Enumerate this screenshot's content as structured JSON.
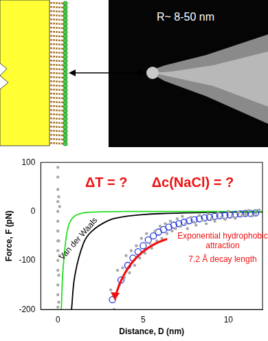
{
  "image_label": "R~ 8-50 nm",
  "chart_data": {
    "type": "scatter",
    "x_label": "Distance, D (nm)",
    "y_label": "Force, F (pN)",
    "xlim": [
      -1,
      12
    ],
    "xticks": [
      0,
      5,
      10
    ],
    "ylim": [
      -200,
      100
    ],
    "yticks": [
      -200,
      -100,
      0,
      100
    ],
    "grid": false,
    "annotations": [
      {
        "text": "ΔT = ?",
        "color": "#ee1111"
      },
      {
        "text": "Δc(NaCl) = ?",
        "color": "#ee1111"
      },
      {
        "text": "Exponential hydrophobic attraction",
        "color": "#ee1111"
      },
      {
        "text": "7.2 Å decay length",
        "color": "#ee1111"
      }
    ],
    "series": [
      {
        "color": "#a8a8a8",
        "marker": "circle",
        "line_style": "none",
        "x": [
          0,
          0,
          0,
          0,
          0,
          0,
          0,
          0,
          0,
          0,
          0,
          0,
          0,
          0,
          0.05,
          0.05,
          0.05,
          0.05,
          0.1,
          0.1,
          3.1,
          3.3,
          3.5,
          3.6,
          3.8,
          3.9,
          4.0,
          4.2,
          4.3,
          4.5,
          4.6,
          4.8,
          4.9,
          5.1,
          5.2,
          5.4,
          5.5,
          5.7,
          5.8,
          6.0,
          6.1,
          6.3,
          6.4,
          6.6,
          6.7,
          6.9,
          7.0,
          7.2,
          7.3,
          7.5,
          7.6,
          7.8,
          8.0,
          8.1,
          8.3,
          8.5,
          8.7,
          8.8,
          9.0,
          9.2,
          9.4,
          9.6,
          9.8,
          10.0,
          10.2,
          10.4,
          10.6,
          10.8,
          11.0,
          11.2,
          11.4,
          11.6,
          11.8
        ],
        "values": [
          -195,
          -170,
          -150,
          -120,
          -100,
          -80,
          -60,
          -40,
          -20,
          0,
          20,
          45,
          70,
          90,
          -185,
          -130,
          -60,
          30,
          -90,
          10,
          -160,
          -200,
          -120,
          -150,
          -115,
          -135,
          -90,
          -125,
          -80,
          -110,
          -70,
          -95,
          -55,
          -85,
          -45,
          -65,
          -75,
          -40,
          -60,
          -30,
          -55,
          -25,
          -45,
          -20,
          -40,
          -35,
          -15,
          -30,
          -10,
          -25,
          -35,
          -12,
          -22,
          -28,
          -8,
          -18,
          -25,
          -5,
          -15,
          -20,
          -3,
          -12,
          -16,
          0,
          -10,
          -14,
          -2,
          -8,
          -6,
          2,
          -9,
          -4,
          3
        ]
      },
      {
        "color": "#2233dd",
        "marker": "open_circle",
        "line_style": "none",
        "x": [
          3.2,
          3.7,
          4.1,
          4.4,
          4.7,
          5.0,
          5.3,
          5.6,
          5.9,
          6.2,
          6.5,
          6.8,
          7.1,
          7.4,
          7.7,
          8.0,
          8.3,
          8.6,
          8.9,
          9.2,
          9.5,
          9.8,
          10.1,
          10.4,
          10.7,
          11.0,
          11.3,
          11.6
        ],
        "values": [
          -180,
          -140,
          -110,
          -95,
          -82,
          -70,
          -58,
          -50,
          -42,
          -37,
          -32,
          -28,
          -25,
          -22,
          -19,
          -17,
          -15,
          -13,
          -12,
          -10,
          -9,
          -8,
          -7,
          -6,
          -5,
          -4,
          -4,
          -3
        ]
      },
      {
        "color": "#22dd22",
        "marker": "none",
        "line_style": "solid",
        "x": [
          0.2,
          0.3,
          0.5,
          0.7,
          1,
          1.5,
          2,
          3,
          5,
          12
        ],
        "values": [
          -200,
          -120,
          -50,
          -22,
          -9,
          -3,
          -1.5,
          -0.5,
          -0.1,
          0
        ]
      },
      {
        "name": "Van der Waals",
        "color": "#000000",
        "marker": "none",
        "line_style": "solid",
        "x": [
          0.8,
          1,
          1.5,
          2,
          3,
          4,
          5,
          6,
          8,
          10,
          12
        ],
        "values": [
          -200,
          -130,
          -65,
          -40,
          -18,
          -10,
          -6.5,
          -4.5,
          -2.5,
          -1.5,
          -1
        ]
      }
    ]
  }
}
